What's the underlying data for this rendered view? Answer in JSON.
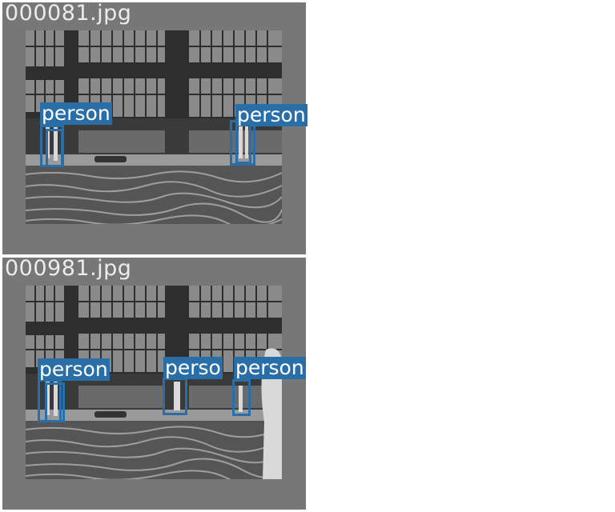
{
  "colors": {
    "frame": "#777777",
    "box": "#2a6ea8",
    "label_text": "#ffffff",
    "filename": "#ececec"
  },
  "panels": [
    {
      "filename": "000081.jpg",
      "detections": [
        {
          "label": "person"
        },
        {
          "label": "person"
        }
      ]
    },
    {
      "filename": "000981.jpg",
      "detections": [
        {
          "label": "person"
        },
        {
          "label": "perso"
        },
        {
          "label": "person"
        }
      ]
    }
  ]
}
